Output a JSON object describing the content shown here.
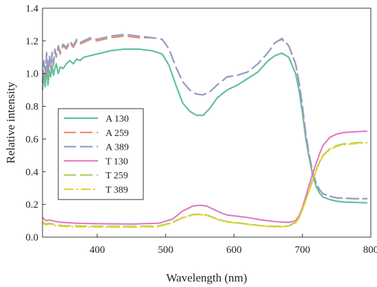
{
  "chart_data": {
    "type": "line",
    "title": "",
    "xlabel": "Wavelength (nm)",
    "ylabel": "Relative intensity",
    "xlim": [
      320,
      800
    ],
    "ylim": [
      0.0,
      1.4
    ],
    "xticks": [
      400,
      500,
      600,
      700,
      800
    ],
    "yticks": [
      0.0,
      0.2,
      0.4,
      0.6,
      0.8,
      1.0,
      1.2,
      1.4
    ],
    "grid": false,
    "legend_position": "left-middle",
    "series": [
      {
        "name": "A 130",
        "color": "#5fbf9a",
        "dash": "solid",
        "x": [
          320,
          322,
          324,
          326,
          328,
          330,
          332,
          334,
          336,
          338,
          340,
          343,
          346,
          350,
          355,
          360,
          365,
          370,
          375,
          380,
          390,
          400,
          420,
          440,
          460,
          480,
          495,
          505,
          515,
          525,
          535,
          545,
          555,
          565,
          575,
          590,
          605,
          620,
          635,
          650,
          660,
          670,
          680,
          690,
          695,
          700,
          705,
          710,
          715,
          720,
          725,
          730,
          740,
          750,
          760,
          780,
          795
        ],
        "y": [
          0.9,
          1.0,
          0.92,
          1.05,
          0.93,
          1.02,
          0.98,
          1.05,
          0.99,
          1.03,
          1.06,
          1.0,
          1.04,
          1.03,
          1.06,
          1.08,
          1.06,
          1.09,
          1.08,
          1.1,
          1.11,
          1.12,
          1.14,
          1.15,
          1.15,
          1.14,
          1.12,
          1.05,
          0.93,
          0.82,
          0.77,
          0.745,
          0.745,
          0.79,
          0.85,
          0.9,
          0.93,
          0.97,
          1.01,
          1.08,
          1.11,
          1.125,
          1.1,
          1.0,
          0.9,
          0.76,
          0.6,
          0.48,
          0.38,
          0.31,
          0.27,
          0.245,
          0.23,
          0.22,
          0.215,
          0.212,
          0.21
        ]
      },
      {
        "name": "A 259",
        "color": "#f0895f",
        "dash": "long",
        "x": [
          320,
          322,
          324,
          326,
          328,
          330,
          332,
          334,
          336,
          338,
          340,
          343,
          346,
          350,
          355,
          360,
          365,
          370,
          375,
          380,
          390,
          400,
          420,
          440,
          460,
          480,
          495,
          505,
          515,
          525,
          535,
          545,
          555,
          565,
          575,
          590,
          605,
          620,
          635,
          650,
          660,
          670,
          680,
          690,
          695,
          700,
          705,
          710,
          715,
          720,
          725,
          730,
          740,
          750,
          760,
          780,
          795
        ],
        "y": [
          0.94,
          1.07,
          0.98,
          1.12,
          0.99,
          1.1,
          1.03,
          1.12,
          1.05,
          1.14,
          1.1,
          1.16,
          1.12,
          1.17,
          1.15,
          1.19,
          1.16,
          1.2,
          1.18,
          1.19,
          1.21,
          1.2,
          1.22,
          1.23,
          1.22,
          1.22,
          1.21,
          1.15,
          1.04,
          0.95,
          0.9,
          0.875,
          0.87,
          0.89,
          0.93,
          0.98,
          0.99,
          1.01,
          1.06,
          1.13,
          1.19,
          1.21,
          1.17,
          1.06,
          0.95,
          0.8,
          0.63,
          0.5,
          0.4,
          0.33,
          0.29,
          0.265,
          0.25,
          0.24,
          0.238,
          0.235,
          0.235
        ]
      },
      {
        "name": "A 389",
        "color": "#8e9fcd",
        "dash": "long",
        "x": [
          320,
          322,
          324,
          326,
          328,
          330,
          332,
          334,
          336,
          338,
          340,
          343,
          346,
          350,
          355,
          360,
          365,
          370,
          375,
          380,
          390,
          400,
          420,
          440,
          460,
          480,
          495,
          505,
          515,
          525,
          535,
          545,
          555,
          565,
          575,
          590,
          605,
          620,
          635,
          650,
          660,
          670,
          680,
          690,
          695,
          700,
          705,
          710,
          715,
          720,
          725,
          730,
          740,
          750,
          760,
          780,
          795
        ],
        "y": [
          0.95,
          1.08,
          0.99,
          1.13,
          1.0,
          1.11,
          1.04,
          1.13,
          1.06,
          1.15,
          1.11,
          1.17,
          1.13,
          1.18,
          1.16,
          1.2,
          1.17,
          1.21,
          1.19,
          1.2,
          1.22,
          1.21,
          1.23,
          1.24,
          1.23,
          1.22,
          1.21,
          1.15,
          1.04,
          0.95,
          0.9,
          0.875,
          0.87,
          0.89,
          0.93,
          0.98,
          0.99,
          1.01,
          1.06,
          1.13,
          1.19,
          1.215,
          1.17,
          1.06,
          0.95,
          0.8,
          0.63,
          0.5,
          0.4,
          0.33,
          0.29,
          0.265,
          0.25,
          0.24,
          0.238,
          0.235,
          0.235
        ]
      },
      {
        "name": "T 130",
        "color": "#e07dbf",
        "dash": "solid",
        "x": [
          320,
          325,
          330,
          340,
          350,
          370,
          400,
          450,
          490,
          510,
          525,
          540,
          550,
          560,
          570,
          580,
          590,
          600,
          620,
          640,
          660,
          680,
          690,
          695,
          700,
          705,
          710,
          715,
          720,
          725,
          730,
          740,
          750,
          760,
          780,
          795
        ],
        "y": [
          0.12,
          0.1,
          0.105,
          0.095,
          0.09,
          0.085,
          0.082,
          0.08,
          0.085,
          0.11,
          0.16,
          0.19,
          0.195,
          0.19,
          0.17,
          0.15,
          0.135,
          0.13,
          0.12,
          0.105,
          0.095,
          0.09,
          0.1,
          0.13,
          0.18,
          0.25,
          0.32,
          0.39,
          0.45,
          0.51,
          0.56,
          0.61,
          0.63,
          0.64,
          0.645,
          0.648
        ]
      },
      {
        "name": "T 259",
        "color": "#a9cf5a",
        "dash": "long",
        "x": [
          320,
          325,
          330,
          340,
          350,
          370,
          400,
          450,
          490,
          510,
          525,
          540,
          550,
          560,
          570,
          580,
          590,
          600,
          620,
          640,
          660,
          680,
          690,
          695,
          700,
          705,
          710,
          715,
          720,
          725,
          730,
          740,
          750,
          760,
          780,
          795
        ],
        "y": [
          0.09,
          0.08,
          0.085,
          0.075,
          0.07,
          0.068,
          0.066,
          0.065,
          0.068,
          0.09,
          0.12,
          0.138,
          0.14,
          0.135,
          0.12,
          0.105,
          0.095,
          0.09,
          0.08,
          0.07,
          0.065,
          0.07,
          0.09,
          0.12,
          0.17,
          0.23,
          0.29,
          0.35,
          0.41,
          0.46,
          0.5,
          0.54,
          0.56,
          0.57,
          0.577,
          0.58
        ]
      },
      {
        "name": "T 389",
        "color": "#e6d42c",
        "dash": "dashdot",
        "x": [
          320,
          325,
          330,
          340,
          350,
          370,
          400,
          450,
          490,
          510,
          525,
          540,
          550,
          560,
          570,
          580,
          590,
          600,
          620,
          640,
          660,
          680,
          690,
          695,
          700,
          705,
          710,
          715,
          720,
          725,
          730,
          740,
          750,
          760,
          780,
          795
        ],
        "y": [
          0.085,
          0.075,
          0.08,
          0.07,
          0.065,
          0.063,
          0.062,
          0.061,
          0.064,
          0.088,
          0.118,
          0.136,
          0.138,
          0.133,
          0.118,
          0.102,
          0.092,
          0.088,
          0.078,
          0.068,
          0.062,
          0.066,
          0.086,
          0.115,
          0.165,
          0.225,
          0.285,
          0.345,
          0.405,
          0.455,
          0.495,
          0.535,
          0.555,
          0.565,
          0.573,
          0.577
        ]
      }
    ]
  }
}
